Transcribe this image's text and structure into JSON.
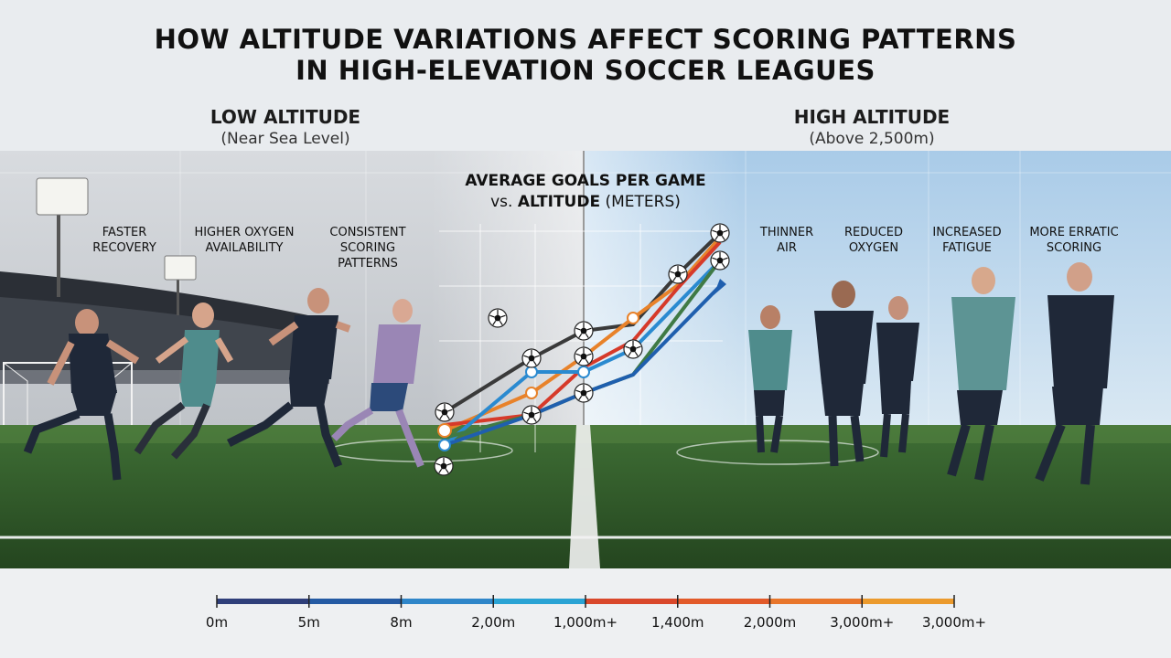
{
  "title": {
    "line1": "HOW ALTITUDE VARIATIONS AFFECT SCORING PATTERNS",
    "line2": "IN HIGH-ELEVATION SOCCER LEAGUES"
  },
  "low_altitude": {
    "heading": "LOW ALTITUDE",
    "sub": "(Near Sea Level)"
  },
  "high_altitude": {
    "heading": "HIGH ALTITUDE",
    "sub": "(Above 2,500m)"
  },
  "chart": {
    "title_line1": "AVERAGE GOALS PER GAME",
    "title_line2_prefix": "vs.",
    "title_line2_bold": "ALTITUDE",
    "title_line2_suffix": "(METERS)"
  },
  "left_features": [
    {
      "line1": "FASTER",
      "line2": "RECOVERY"
    },
    {
      "line1": "HIGHER OXYGEN",
      "line2": "AVAILABILITY"
    },
    {
      "line1": "CONSISTENT",
      "line2": "SCORING PATTERNS"
    }
  ],
  "right_features": [
    {
      "line1": "THINNER",
      "line2": "AIR"
    },
    {
      "line1": "REDUCED",
      "line2": "OXYGEN"
    },
    {
      "line1": "INCREASED",
      "line2": "FATIGUE"
    },
    {
      "line1": "MORE ERRATIC",
      "line2": "SCORING"
    }
  ],
  "scale": {
    "ticks": [
      "0m",
      "5m",
      "8m",
      "2,00m",
      "1,000m+",
      "1,400m",
      "2,000m",
      "3,000m+",
      "3,000m+"
    ],
    "colors": [
      "#2f3f7a",
      "#245aa3",
      "#2f86c9",
      "#2aa3d4",
      "#d9482b",
      "#e25a2a",
      "#e8762b",
      "#eb9a2d"
    ]
  },
  "colors": {
    "sky_left": "#cfd3d8",
    "sky_right": "#bcd6ec",
    "grass_dark": "#2f5a2a",
    "grass_light": "#4c7d3a",
    "jersey_navy": "#1f2838",
    "jersey_teal": "#4f8c8c",
    "jersey_lilac": "#9a86b5",
    "line_dark": "#3a3a3a",
    "line_blue": "#2a8ad0",
    "line_red": "#d63a2a",
    "line_orange": "#e8822a",
    "line_green": "#3f7a45",
    "line_darkblue": "#1f5fae"
  }
}
